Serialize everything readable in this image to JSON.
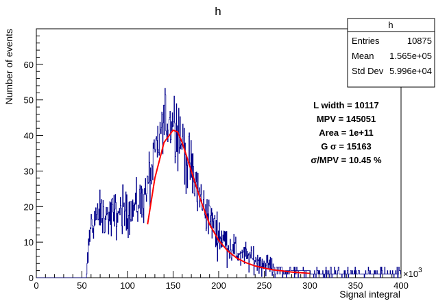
{
  "chart_data": {
    "type": "histogram",
    "title": "h",
    "xlabel": "Signal integral",
    "ylabel": "Number of events",
    "x_multiplier": "×10",
    "x_multiplier_exp": "3",
    "xlim": [
      0,
      400
    ],
    "ylim": [
      0,
      70
    ],
    "x_ticks": [
      0,
      50,
      100,
      150,
      200,
      250,
      300,
      350,
      400
    ],
    "y_ticks": [
      0,
      10,
      20,
      30,
      40,
      50,
      60
    ],
    "x_ticks_label": [
      "0",
      "50",
      "100",
      "150",
      "200",
      "250",
      "300",
      "350",
      "400"
    ],
    "y_ticks_label": [
      "0",
      "10",
      "20",
      "30",
      "40",
      "50",
      "60"
    ],
    "histogram_color": "#00008b",
    "fit_color": "#ff0000",
    "histogram_envelope": [
      {
        "x": 55,
        "y": 0
      },
      {
        "x": 57,
        "y": 8
      },
      {
        "x": 60,
        "y": 15
      },
      {
        "x": 70,
        "y": 18
      },
      {
        "x": 80,
        "y": 17
      },
      {
        "x": 90,
        "y": 18
      },
      {
        "x": 100,
        "y": 19
      },
      {
        "x": 110,
        "y": 20
      },
      {
        "x": 120,
        "y": 24
      },
      {
        "x": 130,
        "y": 33
      },
      {
        "x": 140,
        "y": 44
      },
      {
        "x": 150,
        "y": 45
      },
      {
        "x": 160,
        "y": 38
      },
      {
        "x": 170,
        "y": 30
      },
      {
        "x": 180,
        "y": 22
      },
      {
        "x": 190,
        "y": 17
      },
      {
        "x": 200,
        "y": 12
      },
      {
        "x": 220,
        "y": 7
      },
      {
        "x": 240,
        "y": 5
      },
      {
        "x": 260,
        "y": 3
      },
      {
        "x": 280,
        "y": 2
      },
      {
        "x": 300,
        "y": 1.5
      },
      {
        "x": 350,
        "y": 1
      },
      {
        "x": 400,
        "y": 1
      }
    ],
    "fit_curve": [
      {
        "x": 122,
        "y": 15
      },
      {
        "x": 130,
        "y": 28
      },
      {
        "x": 140,
        "y": 38
      },
      {
        "x": 150,
        "y": 41.5
      },
      {
        "x": 155,
        "y": 41
      },
      {
        "x": 160,
        "y": 38
      },
      {
        "x": 170,
        "y": 30
      },
      {
        "x": 180,
        "y": 22
      },
      {
        "x": 190,
        "y": 15
      },
      {
        "x": 200,
        "y": 10.5
      },
      {
        "x": 210,
        "y": 7.5
      },
      {
        "x": 220,
        "y": 5.5
      },
      {
        "x": 230,
        "y": 4.2
      },
      {
        "x": 240,
        "y": 3.3
      },
      {
        "x": 250,
        "y": 2.7
      },
      {
        "x": 260,
        "y": 2.2
      },
      {
        "x": 270,
        "y": 1.9
      },
      {
        "x": 280,
        "y": 1.6
      },
      {
        "x": 290,
        "y": 1.4
      },
      {
        "x": 300,
        "y": 1.2
      }
    ],
    "stats_box": {
      "title": "h",
      "rows": [
        {
          "label": "Entries",
          "value": "10875"
        },
        {
          "label": "Mean",
          "value": "1.565e+05"
        },
        {
          "label": "Std Dev",
          "value": "5.996e+04"
        }
      ]
    },
    "annotations": [
      "L width = 10117",
      "MPV = 145051",
      "Area = 1e+11",
      "G σ = 15163",
      "σ/MPV = 10.45 %"
    ]
  }
}
